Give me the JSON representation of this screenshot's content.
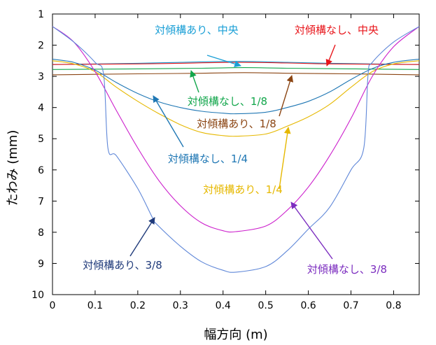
{
  "chart_data": {
    "type": "line",
    "xlabel": "幅方向 (m)",
    "ylabel": "たわみ (mm)",
    "xlim": [
      0,
      0.86
    ],
    "ylim": [
      1,
      10
    ],
    "y_inverted": true,
    "x_ticks": [
      "0",
      "0.1",
      "0.2",
      "0.3",
      "0.4",
      "0.5",
      "0.6",
      "0.7",
      "0.8"
    ],
    "y_ticks": [
      "1",
      "2",
      "3",
      "4",
      "5",
      "6",
      "7",
      "8",
      "9",
      "10"
    ],
    "grid": false,
    "series": [
      {
        "name": "対傾構あり、中央",
        "color": "#1a9fd6",
        "points": [
          [
            0,
            2.62
          ],
          [
            0.2,
            2.58
          ],
          [
            0.3,
            2.55
          ],
          [
            0.43,
            2.52
          ],
          [
            0.55,
            2.55
          ],
          [
            0.65,
            2.58
          ],
          [
            0.86,
            2.62
          ]
        ]
      },
      {
        "name": "対傾構なし、中央",
        "color": "#e8161b",
        "points": [
          [
            0,
            2.62
          ],
          [
            0.2,
            2.6
          ],
          [
            0.3,
            2.58
          ],
          [
            0.43,
            2.55
          ],
          [
            0.55,
            2.57
          ],
          [
            0.65,
            2.6
          ],
          [
            0.86,
            2.62
          ]
        ]
      },
      {
        "name": "対傾構なし、1/8",
        "color": "#12a64b",
        "points": [
          [
            0,
            2.78
          ],
          [
            0.2,
            2.76
          ],
          [
            0.35,
            2.74
          ],
          [
            0.45,
            2.72
          ],
          [
            0.55,
            2.74
          ],
          [
            0.7,
            2.76
          ],
          [
            0.86,
            2.78
          ]
        ]
      },
      {
        "name": "対傾構あり、1/8",
        "color": "#8b4513",
        "points": [
          [
            0,
            2.95
          ],
          [
            0.2,
            2.92
          ],
          [
            0.35,
            2.9
          ],
          [
            0.45,
            2.88
          ],
          [
            0.55,
            2.9
          ],
          [
            0.7,
            2.92
          ],
          [
            0.86,
            2.95
          ]
        ]
      },
      {
        "name": "対傾構なし、1/4",
        "color": "#1f77b4",
        "points": [
          [
            0,
            2.45
          ],
          [
            0.05,
            2.55
          ],
          [
            0.1,
            2.8
          ],
          [
            0.15,
            3.2
          ],
          [
            0.2,
            3.55
          ],
          [
            0.25,
            3.82
          ],
          [
            0.3,
            4.0
          ],
          [
            0.35,
            4.12
          ],
          [
            0.4,
            4.18
          ],
          [
            0.43,
            4.2
          ],
          [
            0.5,
            4.15
          ],
          [
            0.55,
            4.0
          ],
          [
            0.6,
            3.8
          ],
          [
            0.65,
            3.5
          ],
          [
            0.7,
            3.1
          ],
          [
            0.75,
            2.75
          ],
          [
            0.8,
            2.55
          ],
          [
            0.86,
            2.45
          ]
        ]
      },
      {
        "name": "対傾構あり、1/4",
        "color": "#e6b800",
        "points": [
          [
            0,
            2.5
          ],
          [
            0.05,
            2.6
          ],
          [
            0.1,
            2.85
          ],
          [
            0.15,
            3.35
          ],
          [
            0.2,
            3.8
          ],
          [
            0.25,
            4.2
          ],
          [
            0.3,
            4.55
          ],
          [
            0.35,
            4.8
          ],
          [
            0.4,
            4.9
          ],
          [
            0.43,
            4.92
          ],
          [
            0.5,
            4.85
          ],
          [
            0.55,
            4.6
          ],
          [
            0.6,
            4.3
          ],
          [
            0.65,
            3.9
          ],
          [
            0.7,
            3.35
          ],
          [
            0.75,
            2.85
          ],
          [
            0.8,
            2.6
          ],
          [
            0.86,
            2.5
          ]
        ]
      },
      {
        "name": "対傾構なし、3/8",
        "color": "#cc1fcc",
        "points": [
          [
            0,
            1.4
          ],
          [
            0.05,
            1.9
          ],
          [
            0.1,
            2.85
          ],
          [
            0.15,
            4.1
          ],
          [
            0.2,
            5.3
          ],
          [
            0.25,
            6.35
          ],
          [
            0.3,
            7.15
          ],
          [
            0.35,
            7.7
          ],
          [
            0.4,
            7.95
          ],
          [
            0.43,
            7.98
          ],
          [
            0.5,
            7.8
          ],
          [
            0.55,
            7.3
          ],
          [
            0.6,
            6.55
          ],
          [
            0.65,
            5.55
          ],
          [
            0.7,
            4.35
          ],
          [
            0.75,
            3.0
          ],
          [
            0.8,
            2.05
          ],
          [
            0.86,
            1.4
          ]
        ]
      },
      {
        "name": "対傾構あり、3/8",
        "color": "#5f87d8",
        "points": [
          [
            0,
            1.4
          ],
          [
            0.05,
            1.9
          ],
          [
            0.1,
            2.55
          ],
          [
            0.12,
            2.95
          ],
          [
            0.13,
            5.3
          ],
          [
            0.15,
            5.55
          ],
          [
            0.2,
            6.6
          ],
          [
            0.235,
            7.55
          ],
          [
            0.245,
            7.75
          ],
          [
            0.3,
            8.45
          ],
          [
            0.35,
            8.95
          ],
          [
            0.4,
            9.22
          ],
          [
            0.43,
            9.28
          ],
          [
            0.5,
            9.1
          ],
          [
            0.55,
            8.6
          ],
          [
            0.6,
            7.9
          ],
          [
            0.65,
            7.2
          ],
          [
            0.7,
            6.0
          ],
          [
            0.73,
            5.3
          ],
          [
            0.74,
            2.95
          ],
          [
            0.75,
            2.55
          ],
          [
            0.8,
            1.9
          ],
          [
            0.86,
            1.4
          ]
        ]
      }
    ],
    "annotations": [
      {
        "text": "対傾構あり、中央",
        "color": "#1a9fd6"
      },
      {
        "text": "対傾構なし、中央",
        "color": "#e8161b"
      },
      {
        "text": "対傾構なし、1/8",
        "color": "#12a64b"
      },
      {
        "text": "対傾構あり、1/8",
        "color": "#8b4513"
      },
      {
        "text": "対傾構なし、1/4",
        "color": "#1f77b4"
      },
      {
        "text": "対傾構あり、1/4",
        "color": "#e6b800"
      },
      {
        "text": "対傾構あり、3/8",
        "color": "#1f3a7a"
      },
      {
        "text": "対傾構なし、3/8",
        "color": "#7b2cbf"
      }
    ]
  }
}
